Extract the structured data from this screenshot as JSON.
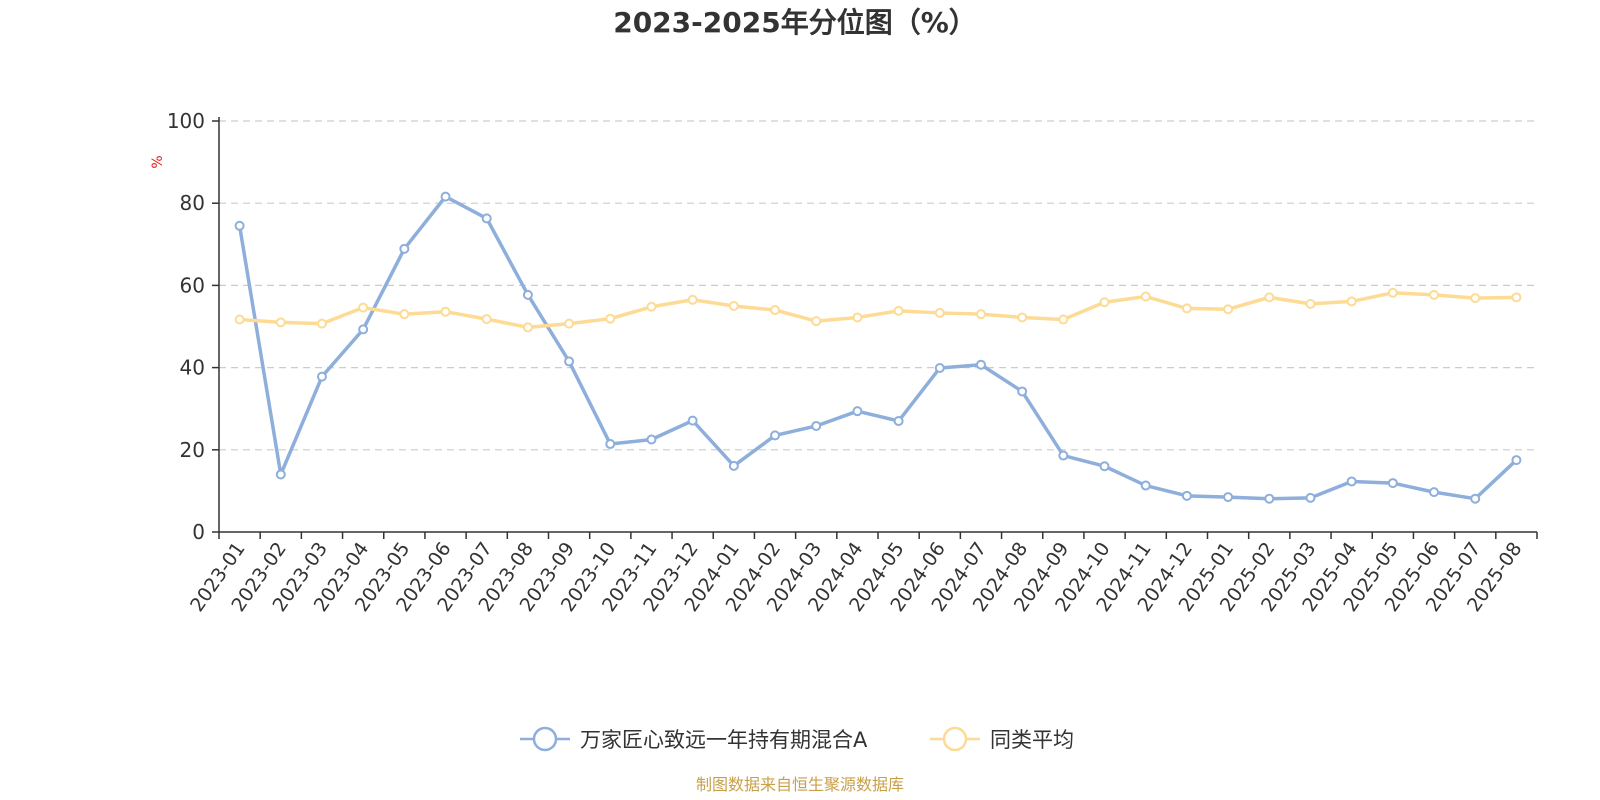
{
  "chart_data": {
    "type": "line",
    "title": "2023-2025年分位图（%）",
    "ylabel": "%",
    "ylim": [
      0,
      100
    ],
    "yticks": [
      0,
      20,
      40,
      60,
      80,
      100
    ],
    "grid": "horizontal dashed",
    "legend_position": "bottom-center",
    "source": "制图数据来自恒生聚源数据库",
    "categories": [
      "2023-01",
      "2023-02",
      "2023-03",
      "2023-04",
      "2023-05",
      "2023-06",
      "2023-07",
      "2023-08",
      "2023-09",
      "2023-10",
      "2023-11",
      "2023-12",
      "2024-01",
      "2024-02",
      "2024-03",
      "2024-04",
      "2024-05",
      "2024-06",
      "2024-07",
      "2024-08",
      "2024-09",
      "2024-10",
      "2024-11",
      "2024-12",
      "2025-01",
      "2025-02",
      "2025-03",
      "2025-04",
      "2025-05",
      "2025-06",
      "2025-07",
      "2025-08"
    ],
    "series": [
      {
        "name": "万家匠心致远一年持有期混合A",
        "color": "#8eaedb",
        "values": [
          74.5,
          14.0,
          37.8,
          49.3,
          68.9,
          81.6,
          76.3,
          57.7,
          41.5,
          21.4,
          22.5,
          27.1,
          16.1,
          23.5,
          25.8,
          29.4,
          27.0,
          39.9,
          40.7,
          34.2,
          18.6,
          16.0,
          11.3,
          8.8,
          8.5,
          8.1,
          8.3,
          12.3,
          11.9,
          9.7,
          8.1,
          17.5
        ]
      },
      {
        "name": "同类平均",
        "color": "#fddb94",
        "values": [
          51.7,
          51.0,
          50.7,
          54.6,
          53.0,
          53.6,
          51.8,
          49.8,
          50.7,
          51.9,
          54.8,
          56.5,
          55.0,
          54.0,
          51.3,
          52.2,
          53.8,
          53.3,
          53.0,
          52.2,
          51.7,
          55.9,
          57.3,
          54.4,
          54.2,
          57.1,
          55.5,
          56.1,
          58.2,
          57.7,
          56.9,
          57.1
        ]
      }
    ]
  },
  "colors": {
    "title": "#333333",
    "axis": "#333333",
    "grid": "#cccccc",
    "unit": "#e02020",
    "source": "#c8a04a"
  }
}
